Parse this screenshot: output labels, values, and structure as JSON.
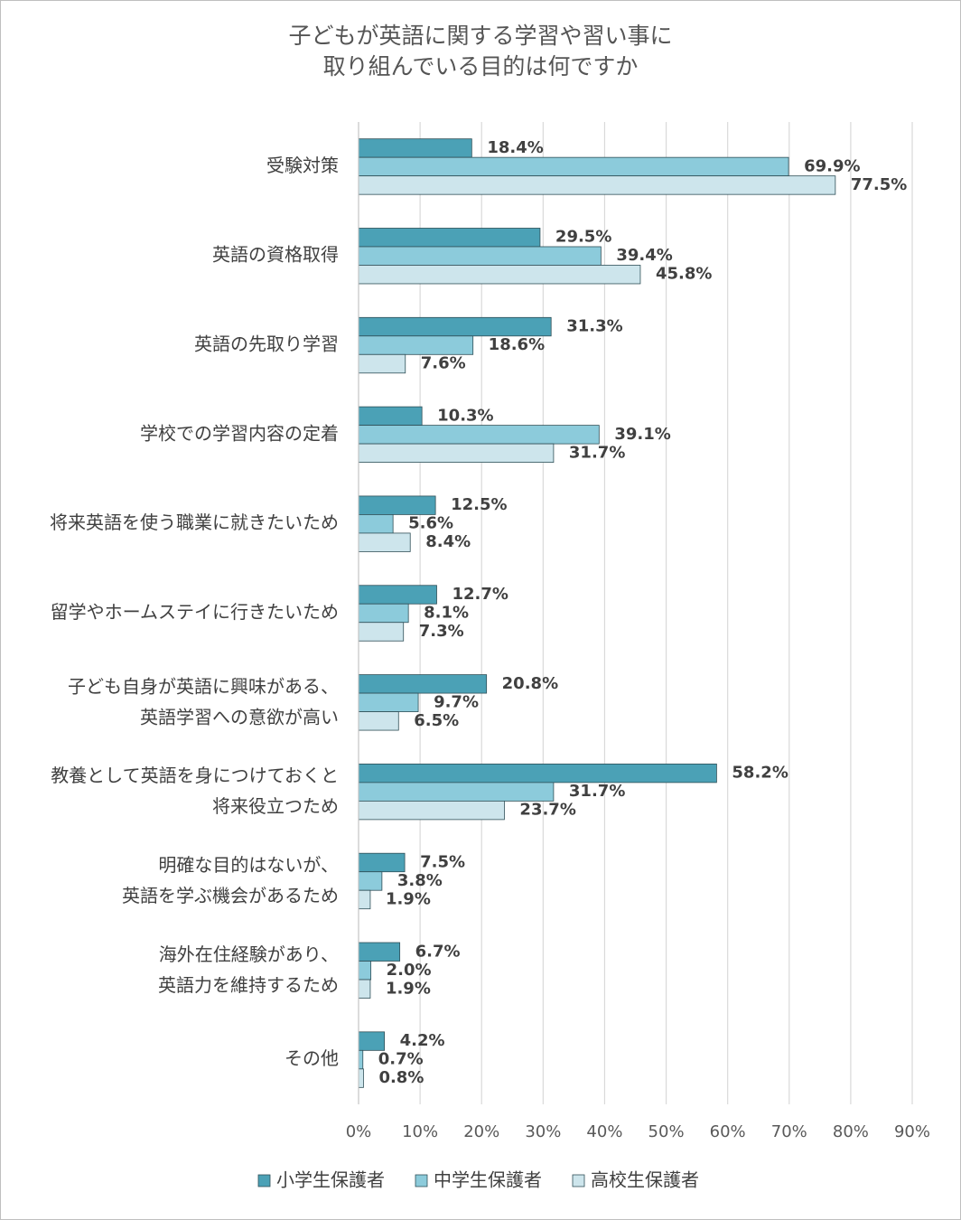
{
  "chart_data": {
    "type": "bar",
    "orientation": "horizontal",
    "title": "子どもが英語に関する学習や習い事に\n取り組んでいる目的は何ですか",
    "categories": [
      "受験対策",
      "英語の資格取得",
      "英語の先取り学習",
      "学校での学習内容の定着",
      "将来英語を使う職業に就きたいため",
      "留学やホームステイに行きたいため",
      "子ども自身が英語に興味がある、\n英語学習への意欲が高い",
      "教養として英語を身につけておくと\n将来役立つため",
      "明確な目的はないが、\n英語を学ぶ機会があるため",
      "海外在住経験があり、\n英語力を維持するため",
      "その他"
    ],
    "series": [
      {
        "name": "小学生保護者",
        "color": "#4ba1b6",
        "values": [
          18.4,
          29.5,
          31.3,
          10.3,
          12.5,
          12.7,
          20.8,
          58.2,
          7.5,
          6.7,
          4.2
        ],
        "value_labels": [
          "18.4%",
          "29.5%",
          "31.3%",
          "10.3%",
          "12.5%",
          "12.7%",
          "20.8%",
          "58.2%",
          "7.5%",
          "6.7%",
          "4.2%"
        ]
      },
      {
        "name": "中学生保護者",
        "color": "#8ccbdb",
        "values": [
          69.9,
          39.4,
          18.6,
          39.1,
          5.6,
          8.1,
          9.7,
          31.7,
          3.8,
          2.0,
          0.7
        ],
        "value_labels": [
          "69.9%",
          "39.4%",
          "18.6%",
          "39.1%",
          "5.6%",
          "8.1%",
          "9.7%",
          "31.7%",
          "3.8%",
          "2.0%",
          "0.7%"
        ]
      },
      {
        "name": "高校生保護者",
        "color": "#cde5ec",
        "values": [
          77.5,
          45.8,
          7.6,
          31.7,
          8.4,
          7.3,
          6.5,
          23.7,
          1.9,
          1.9,
          0.8
        ],
        "value_labels": [
          "77.5%",
          "45.8%",
          "7.6%",
          "31.7%",
          "8.4%",
          "7.3%",
          "6.5%",
          "23.7%",
          "1.9%",
          "1.9%",
          "0.8%"
        ]
      }
    ],
    "xlim": [
      0,
      90
    ],
    "xticks": [
      {
        "value": 0,
        "label": "0%"
      },
      {
        "value": 10,
        "label": "10%"
      },
      {
        "value": 20,
        "label": "20%"
      },
      {
        "value": 30,
        "label": "30%"
      },
      {
        "value": 40,
        "label": "40%"
      },
      {
        "value": 50,
        "label": "50%"
      },
      {
        "value": 60,
        "label": "60%"
      },
      {
        "value": 70,
        "label": "70%"
      },
      {
        "value": 80,
        "label": "80%"
      },
      {
        "value": 90,
        "label": "90%"
      }
    ],
    "grid": true,
    "legend": "bottom"
  }
}
